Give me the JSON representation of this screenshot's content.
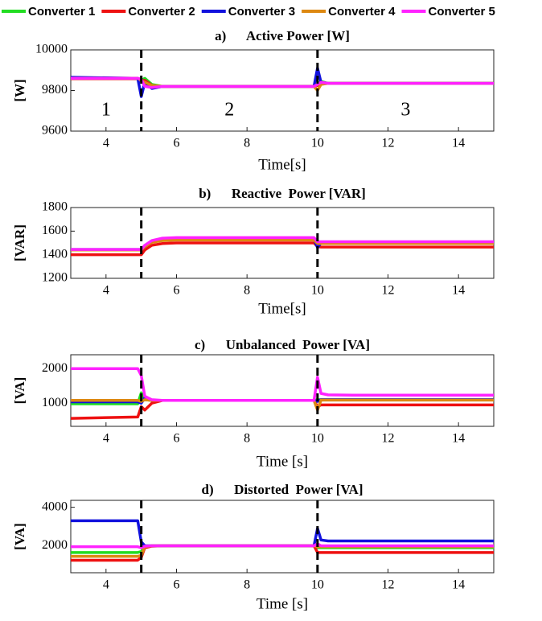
{
  "chart_data": [
    {
      "type": "line",
      "title": "a)      Active Power [W]",
      "ylabel": "[W]",
      "xlabel": "Time[s]",
      "x": [
        3,
        4.9,
        5.0,
        5.1,
        5.3,
        5.6,
        6,
        9.9,
        10,
        10.1,
        10.3,
        11,
        15
      ],
      "xlim": [
        3,
        15
      ],
      "xticks": [
        4,
        6,
        8,
        10,
        12,
        14
      ],
      "ylim": [
        9600,
        10000
      ],
      "yticks": [
        9600,
        9800,
        10000
      ],
      "vlines": [
        5,
        10
      ],
      "annotations": [
        {
          "text": "1",
          "x": 4,
          "y": 9700
        },
        {
          "text": "2",
          "x": 7.5,
          "y": 9700
        },
        {
          "text": "3",
          "x": 12.5,
          "y": 9700
        }
      ],
      "series": [
        {
          "name": "Converter 1",
          "color": "#22dd22",
          "values": [
            9860,
            9860,
            9850,
            9860,
            9830,
            9820,
            9820,
            9820,
            9830,
            9845,
            9835,
            9835,
            9835
          ]
        },
        {
          "name": "Converter 2",
          "color": "#ee1111",
          "values": [
            9858,
            9858,
            9848,
            9850,
            9825,
            9820,
            9820,
            9820,
            9825,
            9840,
            9835,
            9835,
            9835
          ]
        },
        {
          "name": "Converter 3",
          "color": "#1111dd",
          "values": [
            9865,
            9860,
            9770,
            9840,
            9810,
            9820,
            9820,
            9820,
            9910,
            9840,
            9835,
            9835,
            9835
          ]
        },
        {
          "name": "Converter 4",
          "color": "#dd8811",
          "values": [
            9860,
            9860,
            9850,
            9840,
            9825,
            9820,
            9820,
            9820,
            9800,
            9830,
            9835,
            9835,
            9835
          ]
        },
        {
          "name": "Converter 5",
          "color": "#ff22ff",
          "values": [
            9860,
            9860,
            9855,
            9820,
            9815,
            9820,
            9820,
            9820,
            9830,
            9840,
            9835,
            9835,
            9835
          ]
        }
      ]
    },
    {
      "type": "line",
      "title": "b)      Reactive  Power [VAR]",
      "ylabel": "[VAR]",
      "xlabel": "Time[s]",
      "x": [
        3,
        4.9,
        5.0,
        5.1,
        5.3,
        5.6,
        6,
        9.9,
        10,
        10.1,
        10.3,
        11,
        15
      ],
      "xlim": [
        3,
        15
      ],
      "xticks": [
        4,
        6,
        8,
        10,
        12,
        14
      ],
      "ylim": [
        1200,
        1800
      ],
      "yticks": [
        1200,
        1400,
        1600,
        1800
      ],
      "vlines": [
        5,
        10
      ],
      "series": [
        {
          "color": "#22dd22",
          "values": [
            1440,
            1440,
            1440,
            1470,
            1510,
            1530,
            1535,
            1535,
            1500,
            1500,
            1500,
            1500,
            1500
          ]
        },
        {
          "color": "#ee1111",
          "values": [
            1400,
            1400,
            1400,
            1440,
            1480,
            1495,
            1500,
            1500,
            1470,
            1465,
            1465,
            1465,
            1465
          ]
        },
        {
          "color": "#1111dd",
          "values": [
            1445,
            1445,
            1445,
            1470,
            1510,
            1530,
            1535,
            1535,
            1460,
            1500,
            1500,
            1500,
            1500
          ]
        },
        {
          "color": "#dd8811",
          "values": [
            1440,
            1440,
            1440,
            1470,
            1505,
            1520,
            1525,
            1525,
            1495,
            1495,
            1495,
            1495,
            1495
          ]
        },
        {
          "color": "#ff22ff",
          "values": [
            1445,
            1445,
            1445,
            1480,
            1520,
            1540,
            1545,
            1545,
            1510,
            1510,
            1510,
            1510,
            1510
          ]
        }
      ]
    },
    {
      "type": "line",
      "title": "c)      Unbalanced  Power [VA]",
      "ylabel": "[VA]",
      "xlabel": "Time [s]",
      "x": [
        3,
        4.9,
        5.0,
        5.1,
        5.3,
        5.6,
        6,
        9.9,
        10,
        10.1,
        10.3,
        11,
        15
      ],
      "xlim": [
        3,
        15
      ],
      "xticks": [
        4,
        6,
        8,
        10,
        12,
        14
      ],
      "ylim": [
        330,
        2400
      ],
      "yticks": [
        1000,
        2000
      ],
      "vlines": [
        5,
        10
      ],
      "series": [
        {
          "color": "#22dd22",
          "values": [
            980,
            980,
            1300,
            1100,
            1080,
            1080,
            1080,
            1080,
            1100,
            1100,
            1100,
            1100,
            1100
          ]
        },
        {
          "color": "#ee1111",
          "values": [
            560,
            600,
            900,
            800,
            1000,
            1080,
            1080,
            1080,
            900,
            950,
            950,
            950,
            950
          ]
        },
        {
          "color": "#1111dd",
          "values": [
            1040,
            1040,
            1000,
            1150,
            1080,
            1080,
            1080,
            1080,
            1050,
            1100,
            1100,
            1100,
            1100
          ]
        },
        {
          "color": "#dd8811",
          "values": [
            1080,
            1080,
            1050,
            1100,
            1080,
            1080,
            1080,
            1080,
            800,
            1090,
            1090,
            1090,
            1090
          ]
        },
        {
          "color": "#ff22ff",
          "values": [
            2000,
            2000,
            1800,
            1200,
            1100,
            1080,
            1080,
            1080,
            1750,
            1280,
            1240,
            1230,
            1230
          ]
        }
      ]
    },
    {
      "type": "line",
      "title": "d)      Distorted  Power [VA]",
      "ylabel": "[VA]",
      "xlabel": "Time [s]",
      "x": [
        3,
        4.9,
        5.0,
        5.1,
        5.3,
        5.6,
        6,
        9.9,
        10,
        10.1,
        10.3,
        11,
        15
      ],
      "xlim": [
        3,
        15
      ],
      "xticks": [
        4,
        6,
        8,
        10,
        12,
        14
      ],
      "ylim": [
        600,
        4360
      ],
      "yticks": [
        2000,
        4000
      ],
      "vlines": [
        5,
        10
      ],
      "series": [
        {
          "color": "#22dd22",
          "values": [
            1650,
            1650,
            1700,
            1950,
            2000,
            2000,
            2000,
            2000,
            1900,
            1900,
            1900,
            1900,
            1900
          ]
        },
        {
          "color": "#ee1111",
          "values": [
            1250,
            1250,
            1400,
            1900,
            1980,
            2000,
            2000,
            2000,
            1650,
            1650,
            1650,
            1650,
            1650
          ]
        },
        {
          "color": "#1111dd",
          "values": [
            3300,
            3300,
            2200,
            2000,
            2000,
            2000,
            2000,
            2000,
            2900,
            2300,
            2250,
            2250,
            2250
          ]
        },
        {
          "color": "#dd8811",
          "values": [
            1450,
            1450,
            1500,
            1950,
            2000,
            2000,
            2000,
            2000,
            1950,
            1950,
            1950,
            1950,
            1950
          ]
        },
        {
          "color": "#ff22ff",
          "values": [
            1950,
            1950,
            1900,
            1980,
            2000,
            2000,
            2000,
            2000,
            2100,
            2000,
            2000,
            2000,
            2000
          ]
        }
      ]
    }
  ]
}
